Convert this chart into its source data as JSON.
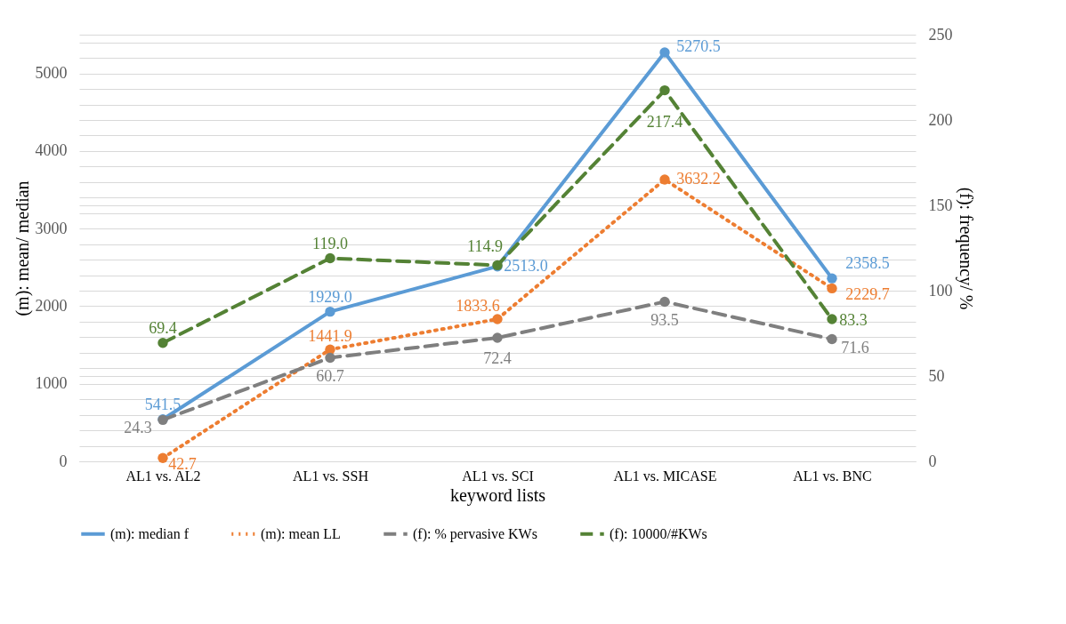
{
  "chart_data": {
    "type": "line",
    "xlabel": "keyword lists",
    "ylabel": "(m): mean/ median",
    "y2label": "(f): frequency/ %",
    "categories": [
      "AL1 vs. AL2",
      "AL1 vs. SSH",
      "AL1 vs. SCI",
      "AL1 vs. MICASE",
      "AL1 vs. BNC"
    ],
    "ylim": [
      0,
      5500
    ],
    "yticks": [
      0,
      {
        "value": 200,
        "label": null
      },
      {
        "value": 400,
        "label": null
      },
      {
        "value": 600,
        "label": null
      },
      {
        "value": 800,
        "label": null
      },
      1000,
      {
        "value": 1200,
        "label": null
      },
      {
        "value": 1400,
        "label": null
      },
      {
        "value": 1600,
        "label": null
      },
      {
        "value": 1800,
        "label": null
      },
      2000,
      {
        "value": 2200,
        "label": null
      },
      {
        "value": 2400,
        "label": null
      },
      {
        "value": 2600,
        "label": null
      },
      {
        "value": 2800,
        "label": null
      },
      3000,
      {
        "value": 3200,
        "label": null
      },
      {
        "value": 3400,
        "label": null
      },
      {
        "value": 3600,
        "label": null
      },
      {
        "value": 3800,
        "label": null
      },
      4000,
      {
        "value": 4200,
        "label": null
      },
      {
        "value": 4400,
        "label": null
      },
      {
        "value": 4600,
        "label": null
      },
      {
        "value": 4800,
        "label": null
      },
      5000,
      {
        "value": 5200,
        "label": null
      },
      {
        "value": 5400,
        "label": null
      }
    ],
    "y2lim": [
      0,
      250
    ],
    "y2ticks": [
      0,
      50,
      100,
      150,
      200,
      250
    ],
    "grid": "y",
    "legend": "bottom",
    "marker": "circle",
    "series": [
      {
        "name": "(m): median f",
        "color": "#5b9bd5",
        "line_style": "solid",
        "values": [
          541.5,
          1929.0,
          2513.0,
          5270.5,
          2358.5
        ],
        "value_labels": [
          "541.5",
          "1929.0",
          "2513.0",
          "5270.5",
          "2358.5"
        ]
      },
      {
        "name": "(m): mean LL",
        "color": "#ed7d31",
        "line_style": "dotted",
        "values": [
          42.7,
          1441.9,
          1833.6,
          3632.2,
          2229.7
        ],
        "value_labels": [
          "42.7",
          "1441.9",
          "1833.6",
          "3632.2",
          "2229.7"
        ]
      },
      {
        "name": "(f): % pervasive KWs",
        "color": "#7f7f7f",
        "line_style": "dashed",
        "axis": "y2",
        "values": [
          24.3,
          60.7,
          72.4,
          93.5,
          71.6
        ],
        "value_labels": [
          "24.3",
          "60.7",
          "72.4",
          "93.5",
          "71.6"
        ]
      },
      {
        "name": "(f): 10000/#KWs",
        "color": "#548235",
        "line_style": "dashed",
        "axis": "y2",
        "values": [
          69.4,
          119.0,
          114.9,
          217.4,
          83.3
        ],
        "value_labels": [
          "69.4",
          "119.0",
          "114.9",
          "217.4",
          "83.3"
        ]
      }
    ]
  }
}
